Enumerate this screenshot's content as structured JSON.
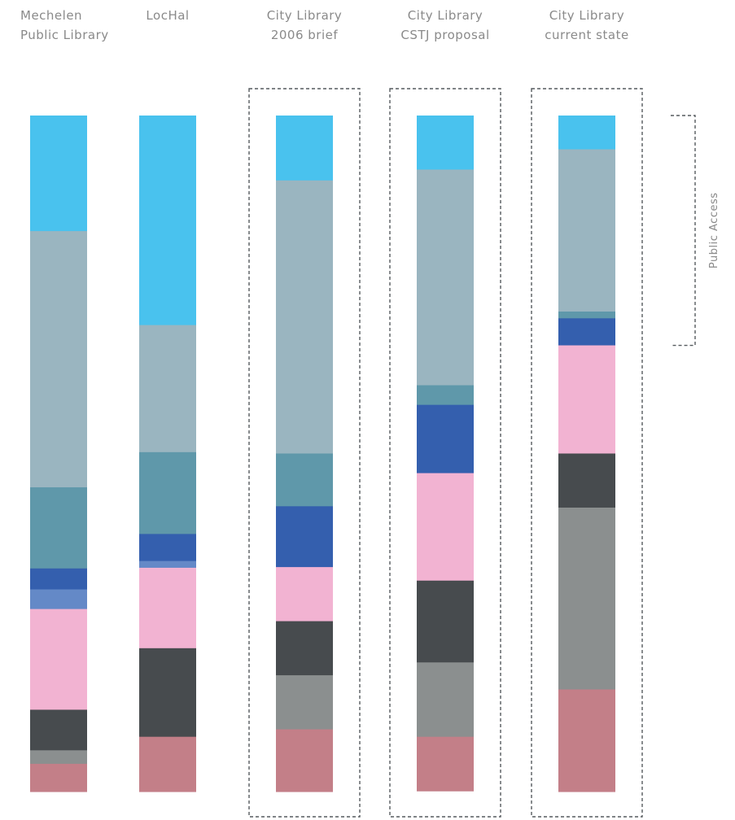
{
  "chart_data": {
    "type": "bar",
    "stacked": true,
    "normalized": true,
    "title": "",
    "xlabel": "",
    "ylabel": "",
    "grid": false,
    "legend": "none",
    "categories": [
      [
        "Mechelen",
        "Public Library"
      ],
      [
        "LocHal"
      ],
      [
        "City Library",
        "2006 brief"
      ],
      [
        "City Library",
        "CSTJ proposal"
      ],
      [
        "City Library",
        "current state"
      ]
    ],
    "highlighted_columns": [
      2,
      3,
      4
    ],
    "bracket": {
      "label": "Public Access",
      "column": 4,
      "from_segment": 0,
      "to_segment": 3
    },
    "series": [
      {
        "color": "#49C2EE",
        "values": [
          0.171,
          0.31,
          0.096,
          0.08,
          0.05
        ]
      },
      {
        "color": "#9AB5C0",
        "values": [
          0.379,
          0.188,
          0.404,
          0.319,
          0.24
        ]
      },
      {
        "color": "#5F98AA",
        "values": [
          0.12,
          0.121,
          0.078,
          0.029,
          0.01
        ]
      },
      {
        "color": "#345FAE",
        "values": [
          0.031,
          0.04,
          0.09,
          0.101,
          0.04
        ]
      },
      {
        "color": "#6489C7",
        "values": [
          0.029,
          0.01,
          0.0,
          0.0,
          0.0
        ]
      },
      {
        "color": "#F2B3D2",
        "values": [
          0.149,
          0.119,
          0.08,
          0.159,
          0.16
        ]
      },
      {
        "color": "#474B4E",
        "values": [
          0.06,
          0.131,
          0.08,
          0.121,
          0.08
        ]
      },
      {
        "color": "#8B8F8F",
        "values": [
          0.02,
          0.0,
          0.08,
          0.11,
          0.269
        ]
      },
      {
        "color": "#C37F88",
        "values": [
          0.041,
          0.081,
          0.092,
          0.08,
          0.151
        ]
      }
    ]
  }
}
